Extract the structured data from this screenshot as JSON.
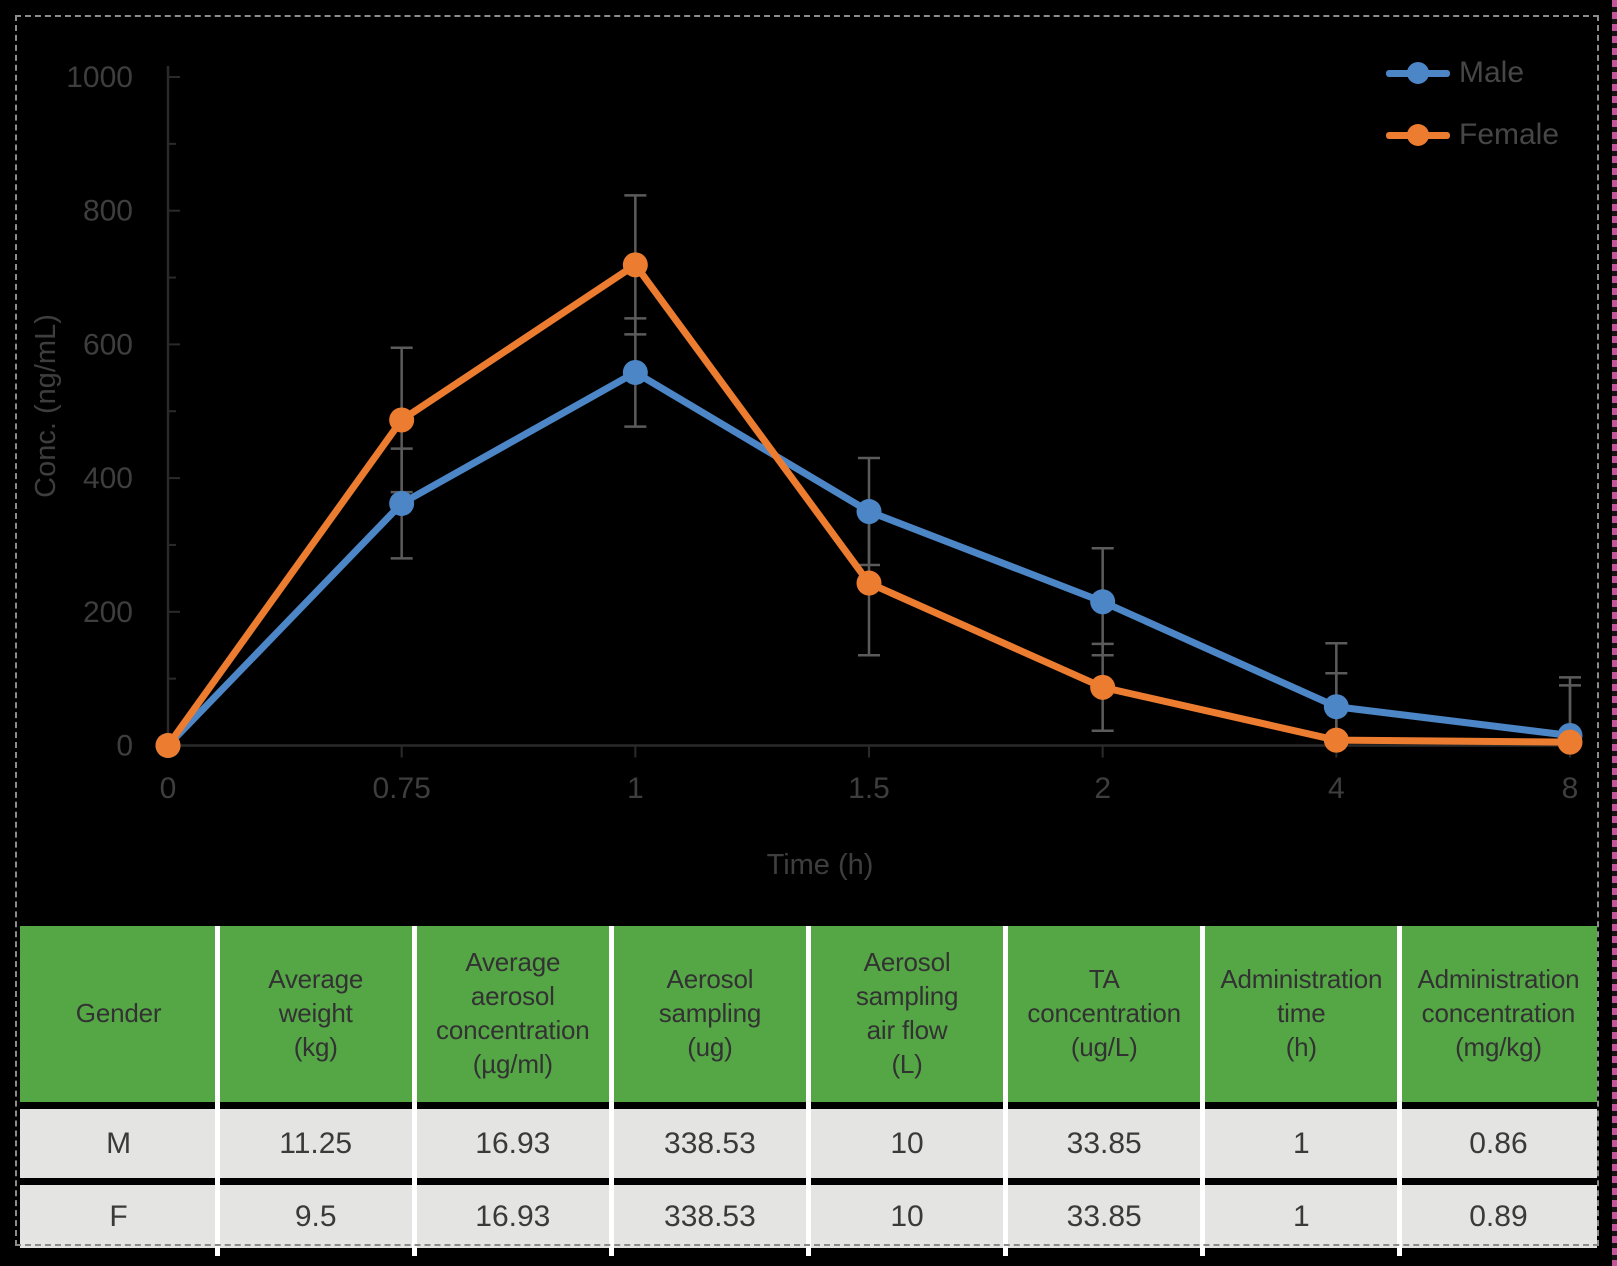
{
  "chart_data": {
    "type": "line",
    "title": "",
    "xlabel": "Time (h)",
    "ylabel": "Conc. (ng/mL)",
    "x_categories": [
      "0",
      "0.75",
      "1",
      "1.5",
      "2",
      "4",
      "8"
    ],
    "y_ticks": [
      0,
      200,
      400,
      600,
      800,
      1000
    ],
    "ylim": [
      0,
      1000
    ],
    "grid": "off",
    "legend_position": "top-right",
    "error_bars": true,
    "series": [
      {
        "name": "Male",
        "color": "#4c86c6",
        "values": [
          0,
          362,
          558,
          350,
          215,
          58,
          15
        ],
        "errors": [
          0,
          82,
          81,
          80,
          80,
          95,
          87
        ]
      },
      {
        "name": "Female",
        "color": "#ec7c30",
        "values": [
          0,
          487,
          719,
          243,
          87,
          8,
          5
        ],
        "errors": [
          0,
          108,
          104,
          108,
          65,
          100,
          85
        ]
      }
    ],
    "colors": {
      "error_bar": "#5b5b5b",
      "axis_line": "#2a2a2a",
      "tick_label": "#3e3e3e",
      "axis_title": "#3e3e3e"
    }
  },
  "table": {
    "header_bg": "#55a746",
    "row_bg": "#e4e4e2",
    "columns": [
      "Gender",
      "Average\nweight\n(kg)",
      "Average\naerosol\nconcentration\n(µg/ml)",
      "Aerosol\nsampling\n(ug)",
      "Aerosol\nsampling\nair flow\n(L)",
      "TA\nconcentration\n(ug/L)",
      "Administration\ntime\n(h)",
      "Administration\nconcentration\n(mg/kg)"
    ],
    "rows": [
      [
        "M",
        "11.25",
        "16.93",
        "338.53",
        "10",
        "33.85",
        "1",
        "0.86"
      ],
      [
        "F",
        "9.5",
        "16.93",
        "338.53",
        "10",
        "33.85",
        "1",
        "0.89"
      ]
    ]
  }
}
